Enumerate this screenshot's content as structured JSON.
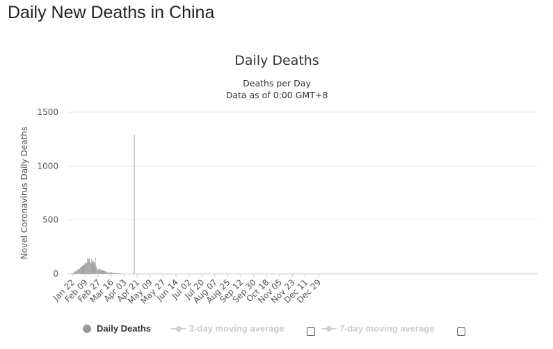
{
  "page": {
    "title": "Daily New Deaths in China"
  },
  "chart_data": {
    "type": "bar",
    "title": "Daily Deaths",
    "subtitle_lines": [
      "Deaths per Day",
      "Data as of 0:00 GMT+8"
    ],
    "ylabel": "Novel Coronavirus Daily Deaths",
    "xlabel": "",
    "ylim": [
      0,
      1500
    ],
    "yticks": [
      0,
      500,
      1000,
      1500
    ],
    "start_date": "Jan 22",
    "x_tick_labels": [
      "Jan 22",
      "Feb 09",
      "Feb 27",
      "Mar 16",
      "Apr 03",
      "Apr 21",
      "May 09",
      "May 27",
      "Jun 14",
      "Jul 02",
      "Jul 20",
      "Aug 07",
      "Aug 25",
      "Sep 12",
      "Sep 30",
      "Oct 18",
      "Nov 05",
      "Nov 23",
      "Dec 11",
      "Dec 29"
    ],
    "grid": true,
    "series": [
      {
        "name": "Daily Deaths",
        "color": "#999999",
        "values": [
          {
            "date": "Jan 22",
            "value": 1
          },
          {
            "date": "Jan 23",
            "value": 8
          },
          {
            "date": "Jan 24",
            "value": 16
          },
          {
            "date": "Jan 25",
            "value": 15
          },
          {
            "date": "Jan 26",
            "value": 24
          },
          {
            "date": "Jan 27",
            "value": 26
          },
          {
            "date": "Jan 28",
            "value": 26
          },
          {
            "date": "Jan 29",
            "value": 38
          },
          {
            "date": "Jan 30",
            "value": 43
          },
          {
            "date": "Jan 31",
            "value": 46
          },
          {
            "date": "Feb 01",
            "value": 45
          },
          {
            "date": "Feb 02",
            "value": 57
          },
          {
            "date": "Feb 03",
            "value": 64
          },
          {
            "date": "Feb 04",
            "value": 65
          },
          {
            "date": "Feb 05",
            "value": 73
          },
          {
            "date": "Feb 06",
            "value": 73
          },
          {
            "date": "Feb 07",
            "value": 86
          },
          {
            "date": "Feb 08",
            "value": 89
          },
          {
            "date": "Feb 09",
            "value": 97
          },
          {
            "date": "Feb 10",
            "value": 108
          },
          {
            "date": "Feb 11",
            "value": 97
          },
          {
            "date": "Feb 12",
            "value": 146
          },
          {
            "date": "Feb 13",
            "value": 121
          },
          {
            "date": "Feb 14",
            "value": 143
          },
          {
            "date": "Feb 15",
            "value": 142
          },
          {
            "date": "Feb 16",
            "value": 105
          },
          {
            "date": "Feb 17",
            "value": 98
          },
          {
            "date": "Feb 18",
            "value": 136
          },
          {
            "date": "Feb 19",
            "value": 114
          },
          {
            "date": "Feb 20",
            "value": 118
          },
          {
            "date": "Feb 21",
            "value": 109
          },
          {
            "date": "Feb 22",
            "value": 97
          },
          {
            "date": "Feb 23",
            "value": 150
          },
          {
            "date": "Feb 24",
            "value": 71
          },
          {
            "date": "Feb 25",
            "value": 52
          },
          {
            "date": "Feb 26",
            "value": 29
          },
          {
            "date": "Feb 27",
            "value": 44
          },
          {
            "date": "Feb 28",
            "value": 47
          },
          {
            "date": "Feb 29",
            "value": 35
          },
          {
            "date": "Mar 01",
            "value": 42
          },
          {
            "date": "Mar 02",
            "value": 31
          },
          {
            "date": "Mar 03",
            "value": 38
          },
          {
            "date": "Mar 04",
            "value": 31
          },
          {
            "date": "Mar 05",
            "value": 30
          },
          {
            "date": "Mar 06",
            "value": 28
          },
          {
            "date": "Mar 07",
            "value": 27
          },
          {
            "date": "Mar 08",
            "value": 22
          },
          {
            "date": "Mar 09",
            "value": 17
          },
          {
            "date": "Mar 10",
            "value": 22
          },
          {
            "date": "Mar 11",
            "value": 11
          },
          {
            "date": "Mar 12",
            "value": 7
          },
          {
            "date": "Mar 13",
            "value": 13
          },
          {
            "date": "Mar 14",
            "value": 10
          },
          {
            "date": "Mar 15",
            "value": 14
          },
          {
            "date": "Mar 16",
            "value": 13
          },
          {
            "date": "Mar 17",
            "value": 11
          },
          {
            "date": "Mar 18",
            "value": 8
          },
          {
            "date": "Mar 19",
            "value": 3
          },
          {
            "date": "Mar 20",
            "value": 7
          },
          {
            "date": "Mar 21",
            "value": 6
          },
          {
            "date": "Mar 22",
            "value": 9
          },
          {
            "date": "Mar 23",
            "value": 7
          },
          {
            "date": "Mar 24",
            "value": 4
          },
          {
            "date": "Mar 25",
            "value": 6
          },
          {
            "date": "Mar 26",
            "value": 5
          },
          {
            "date": "Mar 27",
            "value": 3
          },
          {
            "date": "Mar 28",
            "value": 5
          },
          {
            "date": "Mar 29",
            "value": 5
          },
          {
            "date": "Mar 30",
            "value": 1
          },
          {
            "date": "Mar 31",
            "value": 1
          },
          {
            "date": "Apr 17",
            "value": 1290
          }
        ]
      }
    ],
    "legend": [
      {
        "label": "Daily Deaths",
        "enabled": true
      },
      {
        "label": "3-day moving average",
        "enabled": false
      },
      {
        "label": "7-day moving average",
        "enabled": false
      }
    ],
    "legend_position": "bottom-center"
  }
}
